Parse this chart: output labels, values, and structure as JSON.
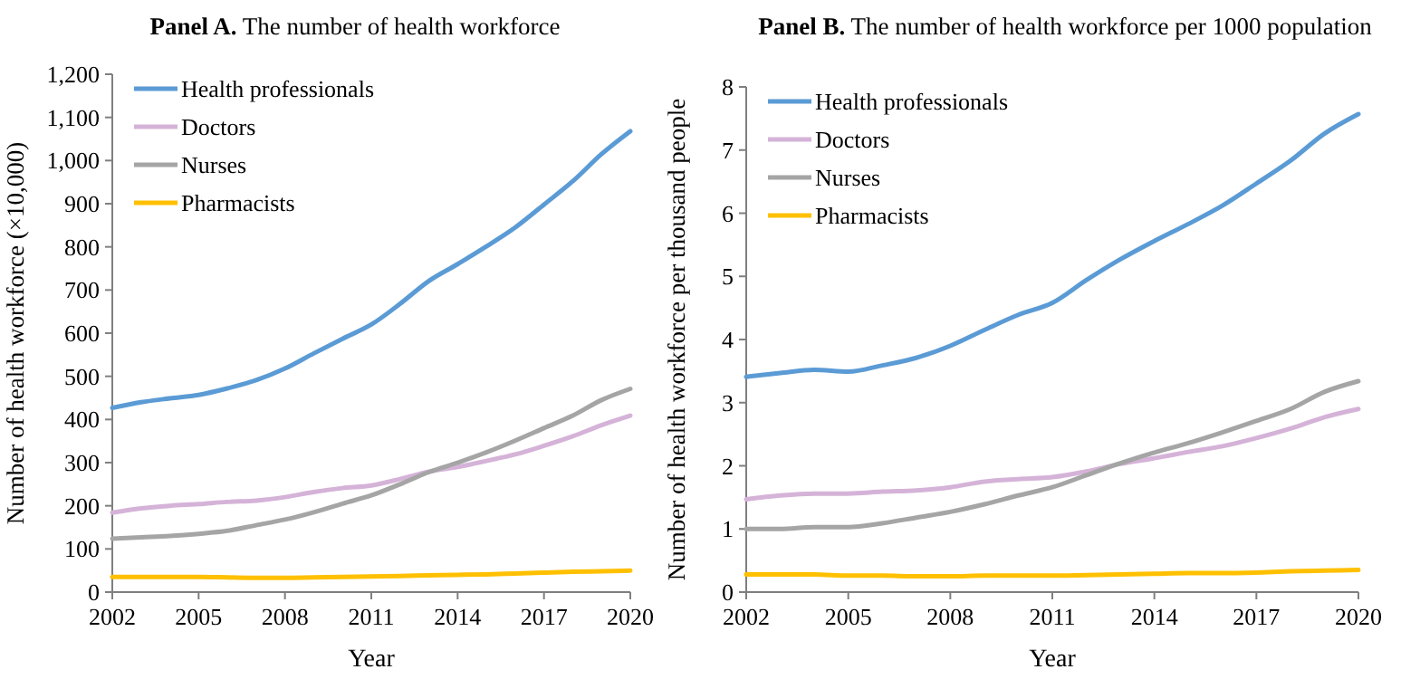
{
  "chart_data": [
    {
      "type": "line",
      "title": "Panel A. The number of health workforce",
      "xlabel": "Year",
      "ylabel": "Number of health workforce (×10,000)",
      "x": [
        2002,
        2003,
        2004,
        2005,
        2006,
        2007,
        2008,
        2009,
        2010,
        2011,
        2012,
        2013,
        2014,
        2015,
        2016,
        2017,
        2018,
        2019,
        2020
      ],
      "series": [
        {
          "name": "Health professionals",
          "color": "#5b9bd5",
          "values": [
            427,
            440,
            449,
            457,
            472,
            491,
            518,
            553,
            587,
            620,
            668,
            721,
            760,
            801,
            845,
            898,
            952,
            1015,
            1068
          ]
        },
        {
          "name": "Doctors",
          "color": "#d5b3d8",
          "values": [
            184,
            194,
            200,
            204,
            209,
            212,
            220,
            232,
            241,
            247,
            262,
            279,
            290,
            304,
            319,
            339,
            361,
            387,
            409
          ]
        },
        {
          "name": "Nurses",
          "color": "#a5a5a5",
          "values": [
            124,
            127,
            130,
            135,
            142,
            155,
            168,
            185,
            205,
            224,
            250,
            278,
            300,
            324,
            351,
            380,
            409,
            445,
            471
          ]
        },
        {
          "name": "Pharmacists",
          "color": "#ffc000",
          "values": [
            35,
            35,
            35,
            35,
            34,
            33,
            33,
            34,
            35,
            36,
            37,
            39,
            40,
            41,
            43,
            45,
            47,
            48,
            50
          ]
        }
      ],
      "xlim": [
        2002,
        2020
      ],
      "xticks": [
        2002,
        2005,
        2008,
        2011,
        2014,
        2017,
        2020
      ],
      "ylim": [
        0,
        1200
      ],
      "yticks": [
        0,
        100,
        200,
        300,
        400,
        500,
        600,
        700,
        800,
        900,
        {
          "value": 1000,
          "label": "1,000"
        },
        {
          "value": 1100,
          "label": "1,100"
        },
        {
          "value": 1200,
          "label": "1,200"
        }
      ],
      "grid": false,
      "legend": "top left",
      "marker": "none",
      "line_style": "solid"
    },
    {
      "type": "line",
      "title": "Panel B. The number of health workforce per 1000 population",
      "xlabel": "Year",
      "ylabel": "Number of health workforce per thousand people",
      "x": [
        2002,
        2003,
        2004,
        2005,
        2006,
        2007,
        2008,
        2009,
        2010,
        2011,
        2012,
        2013,
        2014,
        2015,
        2016,
        2017,
        2018,
        2019,
        2020
      ],
      "series": [
        {
          "name": "Health professionals",
          "color": "#5b9bd5",
          "values": [
            3.41,
            3.47,
            3.52,
            3.49,
            3.59,
            3.71,
            3.9,
            4.15,
            4.39,
            4.58,
            4.94,
            5.27,
            5.56,
            5.83,
            6.12,
            6.47,
            6.83,
            7.26,
            7.57
          ]
        },
        {
          "name": "Doctors",
          "color": "#d5b3d8",
          "values": [
            1.47,
            1.53,
            1.56,
            1.56,
            1.59,
            1.61,
            1.66,
            1.75,
            1.79,
            1.82,
            1.91,
            2.03,
            2.12,
            2.22,
            2.31,
            2.44,
            2.59,
            2.77,
            2.9
          ]
        },
        {
          "name": "Nurses",
          "color": "#a5a5a5",
          "values": [
            1.0,
            1.0,
            1.03,
            1.03,
            1.09,
            1.18,
            1.27,
            1.39,
            1.53,
            1.66,
            1.85,
            2.04,
            2.21,
            2.36,
            2.53,
            2.71,
            2.9,
            3.17,
            3.34
          ]
        },
        {
          "name": "Pharmacists",
          "color": "#ffc000",
          "values": [
            0.28,
            0.28,
            0.28,
            0.26,
            0.26,
            0.25,
            0.25,
            0.26,
            0.26,
            0.26,
            0.27,
            0.28,
            0.29,
            0.3,
            0.3,
            0.31,
            0.33,
            0.34,
            0.35
          ]
        }
      ],
      "xlim": [
        2002,
        2020
      ],
      "xticks": [
        2002,
        2005,
        2008,
        2011,
        2014,
        2017,
        2020
      ],
      "ylim": [
        0,
        8
      ],
      "yticks": [
        0,
        1,
        2,
        3,
        4,
        5,
        6,
        7,
        8
      ],
      "grid": false,
      "legend": "top left",
      "marker": "none",
      "line_style": "solid"
    }
  ]
}
